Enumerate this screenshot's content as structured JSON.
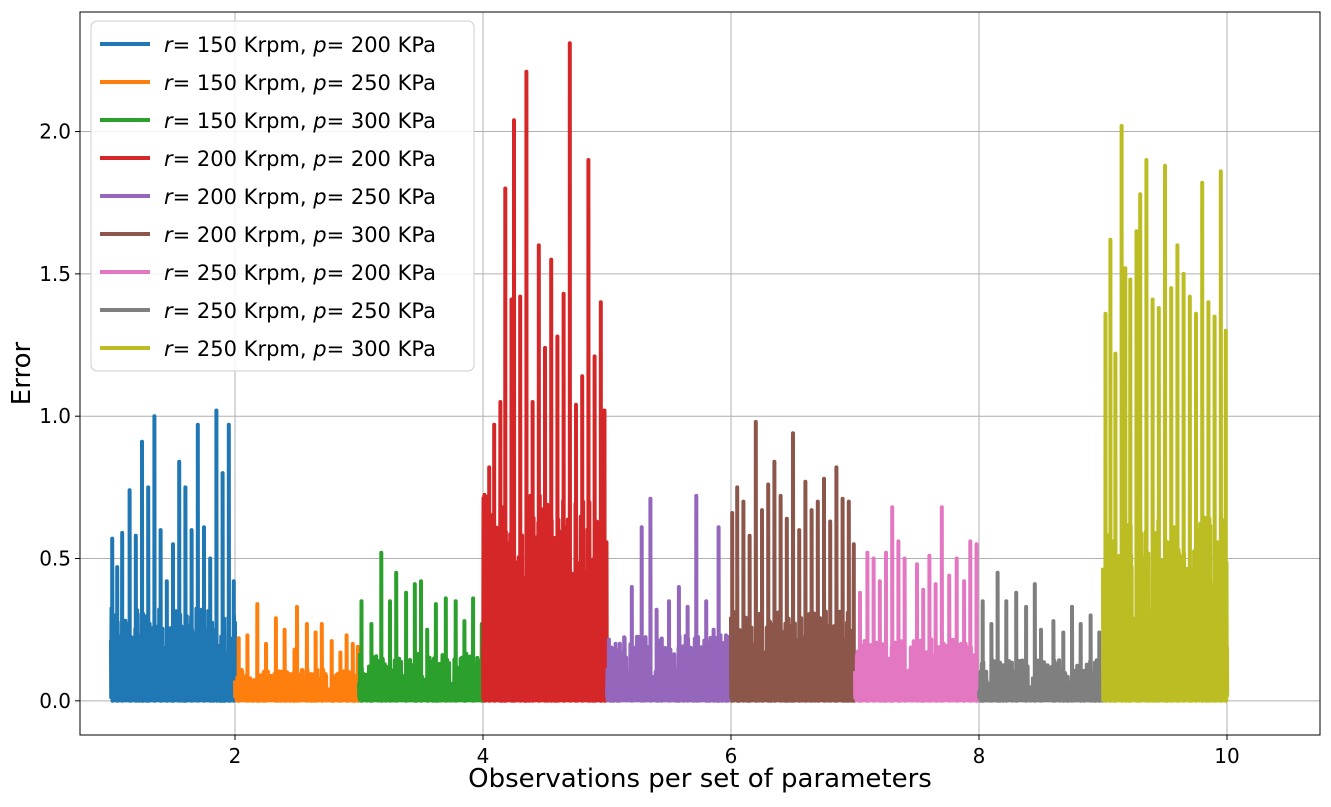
{
  "chart_data": {
    "type": "line",
    "xlabel": "Observations per set of parameters",
    "ylabel": "Error",
    "xlim": [
      0.75,
      10.75
    ],
    "ylim": [
      -0.12,
      2.42
    ],
    "xticks": [
      2,
      4,
      6,
      8,
      10
    ],
    "xtick_labels": [
      "2",
      "4",
      "6",
      "8",
      "10"
    ],
    "yticks": [
      0.0,
      0.5,
      1.0,
      1.5,
      2.0
    ],
    "ytick_labels": [
      "0.0",
      "0.5",
      "1.0",
      "1.5",
      "2.0"
    ],
    "grid": true,
    "legend_position": "top-left",
    "series": [
      {
        "name_r": "r",
        "name_rest": "= 150 Krpm, ",
        "name_p": "p",
        "name_end": "= 200 KPa",
        "color": "#1f77b4",
        "x_start": 1.0,
        "x_end": 2.0,
        "peaks": [
          [
            1.01,
            0.57
          ],
          [
            1.05,
            0.47
          ],
          [
            1.09,
            0.59
          ],
          [
            1.15,
            0.74
          ],
          [
            1.2,
            0.58
          ],
          [
            1.25,
            0.91
          ],
          [
            1.3,
            0.75
          ],
          [
            1.35,
            1.0
          ],
          [
            1.4,
            0.6
          ],
          [
            1.45,
            0.42
          ],
          [
            1.5,
            0.55
          ],
          [
            1.55,
            0.84
          ],
          [
            1.6,
            0.75
          ],
          [
            1.65,
            0.6
          ],
          [
            1.7,
            0.97
          ],
          [
            1.75,
            0.61
          ],
          [
            1.8,
            0.5
          ],
          [
            1.85,
            1.02
          ],
          [
            1.9,
            0.8
          ],
          [
            1.95,
            0.97
          ],
          [
            1.99,
            0.42
          ]
        ]
      },
      {
        "name_r": "r",
        "name_rest": "= 150 Krpm, ",
        "name_p": "p",
        "name_end": "= 250 KPa",
        "color": "#ff7f0e",
        "x_start": 2.0,
        "x_end": 3.0,
        "peaks": [
          [
            2.03,
            0.22
          ],
          [
            2.1,
            0.23
          ],
          [
            2.18,
            0.34
          ],
          [
            2.25,
            0.2
          ],
          [
            2.33,
            0.29
          ],
          [
            2.4,
            0.25
          ],
          [
            2.48,
            0.18
          ],
          [
            2.5,
            0.33
          ],
          [
            2.58,
            0.27
          ],
          [
            2.65,
            0.24
          ],
          [
            2.7,
            0.27
          ],
          [
            2.78,
            0.21
          ],
          [
            2.85,
            0.17
          ],
          [
            2.9,
            0.23
          ],
          [
            2.95,
            0.2
          ],
          [
            2.99,
            0.19
          ]
        ]
      },
      {
        "name_r": "r",
        "name_rest": "= 150 Krpm, ",
        "name_p": "p",
        "name_end": "= 300 KPa",
        "color": "#2ca02c",
        "x_start": 3.0,
        "x_end": 4.0,
        "peaks": [
          [
            3.02,
            0.35
          ],
          [
            3.1,
            0.27
          ],
          [
            3.18,
            0.52
          ],
          [
            3.25,
            0.35
          ],
          [
            3.3,
            0.45
          ],
          [
            3.38,
            0.38
          ],
          [
            3.45,
            0.41
          ],
          [
            3.5,
            0.42
          ],
          [
            3.55,
            0.25
          ],
          [
            3.62,
            0.34
          ],
          [
            3.7,
            0.36
          ],
          [
            3.78,
            0.35
          ],
          [
            3.85,
            0.28
          ],
          [
            3.92,
            0.36
          ],
          [
            3.99,
            0.27
          ]
        ]
      },
      {
        "name_r": "r",
        "name_rest": "= 200 Krpm, ",
        "name_p": "p",
        "name_end": "= 200 KPa",
        "color": "#d62728",
        "x_start": 4.0,
        "x_end": 5.0,
        "peaks": [
          [
            4.01,
            0.68
          ],
          [
            4.05,
            0.82
          ],
          [
            4.09,
            0.97
          ],
          [
            4.14,
            1.05
          ],
          [
            4.18,
            1.8
          ],
          [
            4.23,
            1.41
          ],
          [
            4.25,
            2.04
          ],
          [
            4.3,
            1.42
          ],
          [
            4.35,
            2.21
          ],
          [
            4.4,
            1.05
          ],
          [
            4.45,
            1.6
          ],
          [
            4.5,
            1.24
          ],
          [
            4.55,
            1.55
          ],
          [
            4.6,
            1.28
          ],
          [
            4.65,
            1.43
          ],
          [
            4.7,
            2.31
          ],
          [
            4.75,
            1.04
          ],
          [
            4.8,
            1.14
          ],
          [
            4.85,
            1.9
          ],
          [
            4.9,
            1.21
          ],
          [
            4.95,
            1.4
          ],
          [
            4.98,
            1.02
          ]
        ]
      },
      {
        "name_r": "r",
        "name_rest": "= 200 Krpm, ",
        "name_p": "p",
        "name_end": "= 250 KPa",
        "color": "#9467bd",
        "x_start": 5.0,
        "x_end": 6.0,
        "peaks": [
          [
            5.03,
            0.12
          ],
          [
            5.1,
            0.18
          ],
          [
            5.2,
            0.4
          ],
          [
            5.28,
            0.61
          ],
          [
            5.35,
            0.71
          ],
          [
            5.4,
            0.32
          ],
          [
            5.5,
            0.35
          ],
          [
            5.58,
            0.4
          ],
          [
            5.65,
            0.33
          ],
          [
            5.72,
            0.72
          ],
          [
            5.8,
            0.35
          ],
          [
            5.86,
            0.25
          ],
          [
            5.9,
            0.61
          ],
          [
            5.96,
            0.23
          ]
        ]
      },
      {
        "name_r": "r",
        "name_rest": "= 200 Krpm, ",
        "name_p": "p",
        "name_end": "= 300 KPa",
        "color": "#8c564b",
        "x_start": 6.0,
        "x_end": 7.0,
        "peaks": [
          [
            6.01,
            0.66
          ],
          [
            6.05,
            0.75
          ],
          [
            6.1,
            0.7
          ],
          [
            6.15,
            0.58
          ],
          [
            6.2,
            0.98
          ],
          [
            6.25,
            0.67
          ],
          [
            6.3,
            0.76
          ],
          [
            6.35,
            0.84
          ],
          [
            6.4,
            0.72
          ],
          [
            6.45,
            0.64
          ],
          [
            6.5,
            0.94
          ],
          [
            6.55,
            0.6
          ],
          [
            6.6,
            0.77
          ],
          [
            6.65,
            0.67
          ],
          [
            6.7,
            0.7
          ],
          [
            6.75,
            0.78
          ],
          [
            6.8,
            0.63
          ],
          [
            6.85,
            0.82
          ],
          [
            6.9,
            0.71
          ],
          [
            6.95,
            0.7
          ],
          [
            6.99,
            0.55
          ]
        ]
      },
      {
        "name_r": "r",
        "name_rest": "= 250 Krpm, ",
        "name_p": "p",
        "name_end": "= 200 KPa",
        "color": "#e377c2",
        "x_start": 7.0,
        "x_end": 8.0,
        "peaks": [
          [
            7.04,
            0.38
          ],
          [
            7.1,
            0.52
          ],
          [
            7.15,
            0.5
          ],
          [
            7.2,
            0.42
          ],
          [
            7.25,
            0.52
          ],
          [
            7.3,
            0.68
          ],
          [
            7.35,
            0.56
          ],
          [
            7.4,
            0.5
          ],
          [
            7.5,
            0.48
          ],
          [
            7.55,
            0.39
          ],
          [
            7.6,
            0.51
          ],
          [
            7.65,
            0.41
          ],
          [
            7.7,
            0.68
          ],
          [
            7.76,
            0.44
          ],
          [
            7.82,
            0.5
          ],
          [
            7.88,
            0.42
          ],
          [
            7.93,
            0.56
          ],
          [
            7.98,
            0.55
          ]
        ]
      },
      {
        "name_r": "r",
        "name_rest": "= 250 Krpm, ",
        "name_p": "p",
        "name_end": "= 250 KPa",
        "color": "#7f7f7f",
        "x_start": 8.0,
        "x_end": 9.0,
        "peaks": [
          [
            8.03,
            0.35
          ],
          [
            8.1,
            0.27
          ],
          [
            8.15,
            0.45
          ],
          [
            8.22,
            0.35
          ],
          [
            8.3,
            0.38
          ],
          [
            8.38,
            0.33
          ],
          [
            8.45,
            0.41
          ],
          [
            8.5,
            0.25
          ],
          [
            8.6,
            0.28
          ],
          [
            8.68,
            0.24
          ],
          [
            8.75,
            0.33
          ],
          [
            8.82,
            0.27
          ],
          [
            8.9,
            0.3
          ],
          [
            8.97,
            0.24
          ]
        ]
      },
      {
        "name_r": "r",
        "name_rest": "= 250 Krpm, ",
        "name_p": "p",
        "name_end": "= 300 KPa",
        "color": "#bcbd22",
        "x_start": 9.0,
        "x_end": 10.0,
        "peaks": [
          [
            9.02,
            1.36
          ],
          [
            9.06,
            1.62
          ],
          [
            9.1,
            1.22
          ],
          [
            9.15,
            2.02
          ],
          [
            9.18,
            1.52
          ],
          [
            9.22,
            1.48
          ],
          [
            9.27,
            1.65
          ],
          [
            9.3,
            1.78
          ],
          [
            9.35,
            1.9
          ],
          [
            9.4,
            1.41
          ],
          [
            9.45,
            1.38
          ],
          [
            9.5,
            1.88
          ],
          [
            9.55,
            1.45
          ],
          [
            9.6,
            1.6
          ],
          [
            9.65,
            1.5
          ],
          [
            9.7,
            1.42
          ],
          [
            9.75,
            1.36
          ],
          [
            9.8,
            1.82
          ],
          [
            9.85,
            1.4
          ],
          [
            9.9,
            1.35
          ],
          [
            9.95,
            1.86
          ],
          [
            9.99,
            1.3
          ]
        ]
      }
    ]
  }
}
